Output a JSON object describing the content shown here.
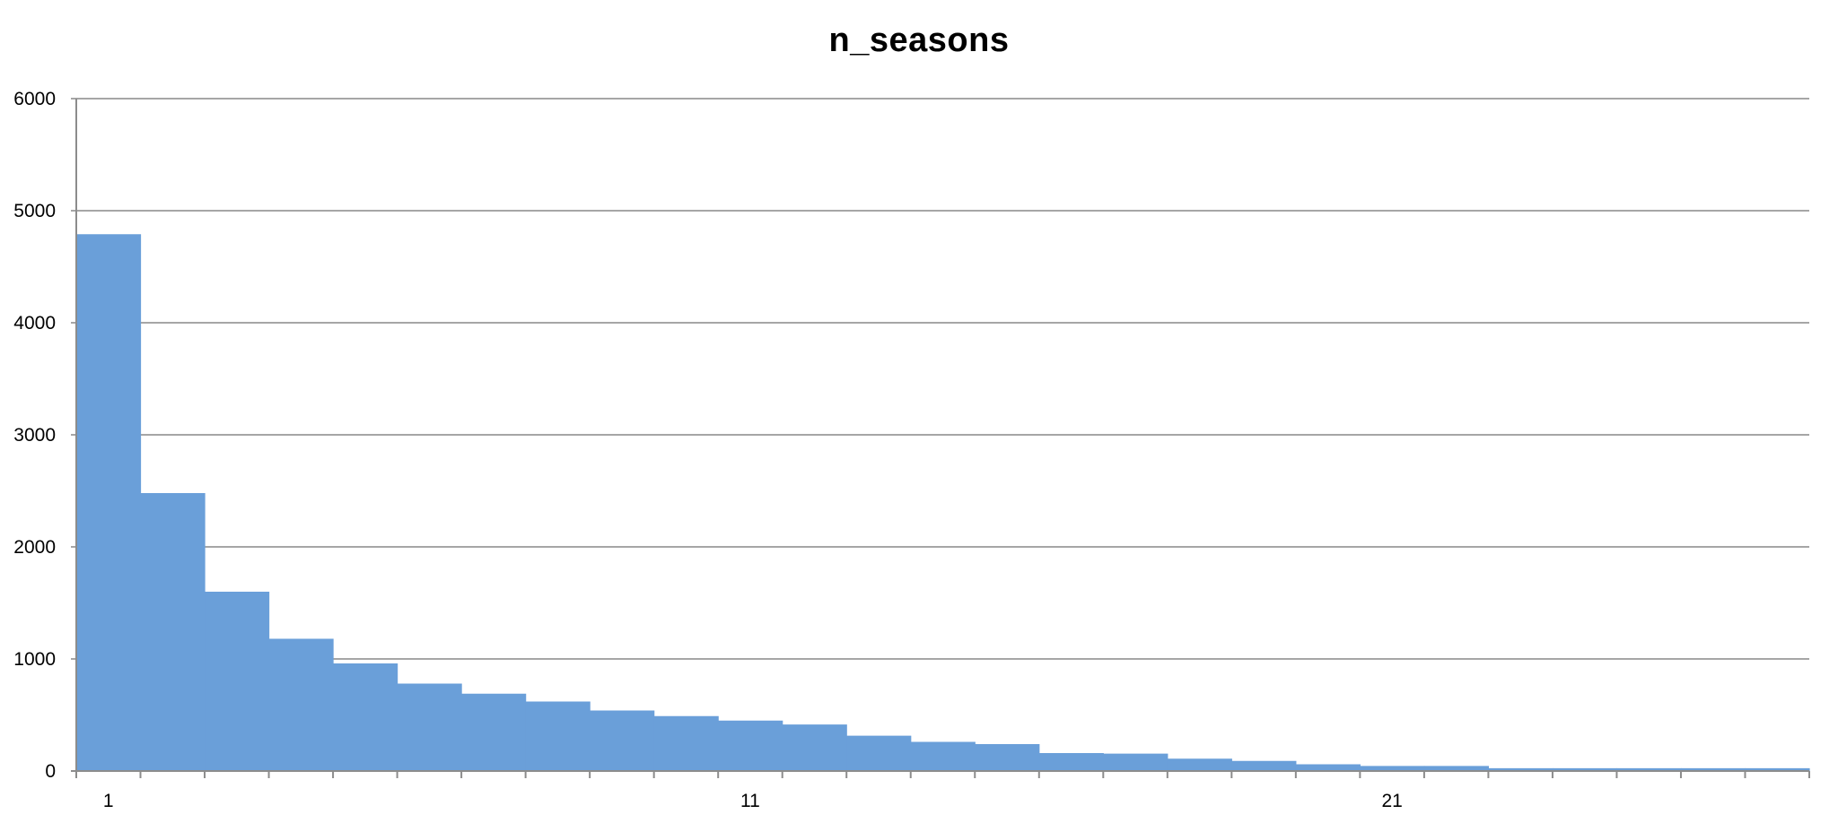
{
  "chart_data": {
    "type": "bar",
    "title": "n_seasons",
    "xlabel": "",
    "ylabel": "",
    "categories": [
      "1",
      "2",
      "3",
      "4",
      "5",
      "6",
      "7",
      "8",
      "9",
      "10",
      "11",
      "12",
      "13",
      "14",
      "15",
      "16",
      "17",
      "18",
      "19",
      "20",
      "21",
      "22",
      "23",
      "24",
      "25",
      "26",
      "27"
    ],
    "x_tick_labels": [
      {
        "category": "1",
        "label": "1"
      },
      {
        "category": "11",
        "label": "11"
      },
      {
        "category": "21",
        "label": "21"
      }
    ],
    "values": [
      4790,
      2480,
      1600,
      1180,
      960,
      780,
      690,
      620,
      540,
      490,
      450,
      415,
      315,
      260,
      240,
      160,
      155,
      110,
      90,
      60,
      45,
      45,
      25,
      25,
      25,
      25,
      25
    ],
    "ylim": [
      0,
      6000
    ],
    "yticks": [
      0,
      1000,
      2000,
      3000,
      4000,
      5000,
      6000
    ],
    "grid": true,
    "bar_color": "#6a9fd9",
    "gap": 0
  }
}
